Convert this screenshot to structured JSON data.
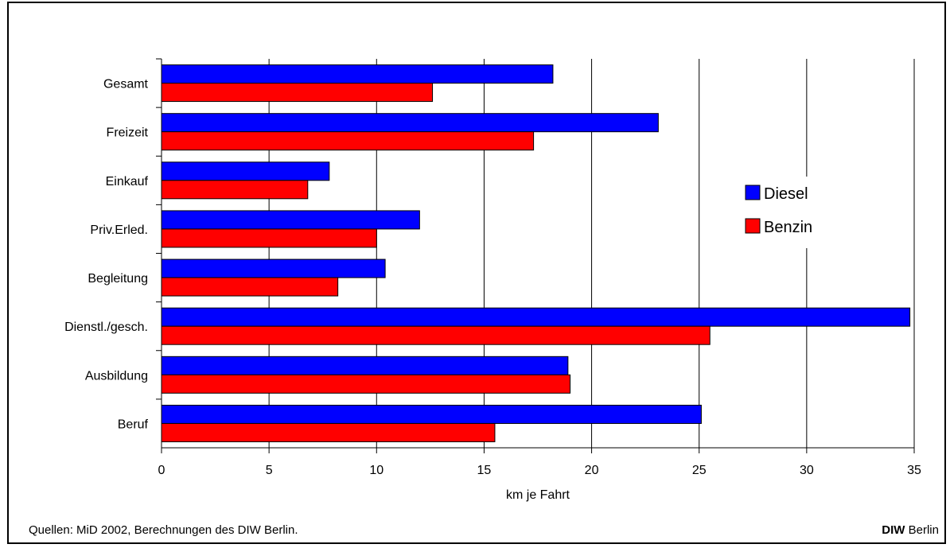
{
  "chart_data": {
    "type": "bar",
    "orientation": "horizontal",
    "title": "",
    "xlabel": "km je Fahrt",
    "ylabel": "",
    "xlim": [
      0,
      35
    ],
    "xticks": [
      0,
      5,
      10,
      15,
      20,
      25,
      30,
      35
    ],
    "grid": true,
    "legend_position": "right",
    "categories": [
      "Gesamt",
      "Freizeit",
      "Einkauf",
      "Priv.Erled.",
      "Begleitung",
      "Dienstl./gesch.",
      "Ausbildung",
      "Beruf"
    ],
    "series": [
      {
        "name": "Diesel",
        "color": "#0000ff",
        "values": [
          18.2,
          23.1,
          7.8,
          12.0,
          10.4,
          34.8,
          18.9,
          25.1
        ]
      },
      {
        "name": "Benzin",
        "color": "#ff0000",
        "values": [
          12.6,
          17.3,
          6.8,
          10.0,
          8.2,
          25.5,
          19.0,
          15.5
        ]
      }
    ]
  },
  "footer": {
    "source": "Quellen: MiD 2002, Berechnungen des DIW Berlin.",
    "brand_bold": "DIW",
    "brand_rest": " Berlin"
  }
}
